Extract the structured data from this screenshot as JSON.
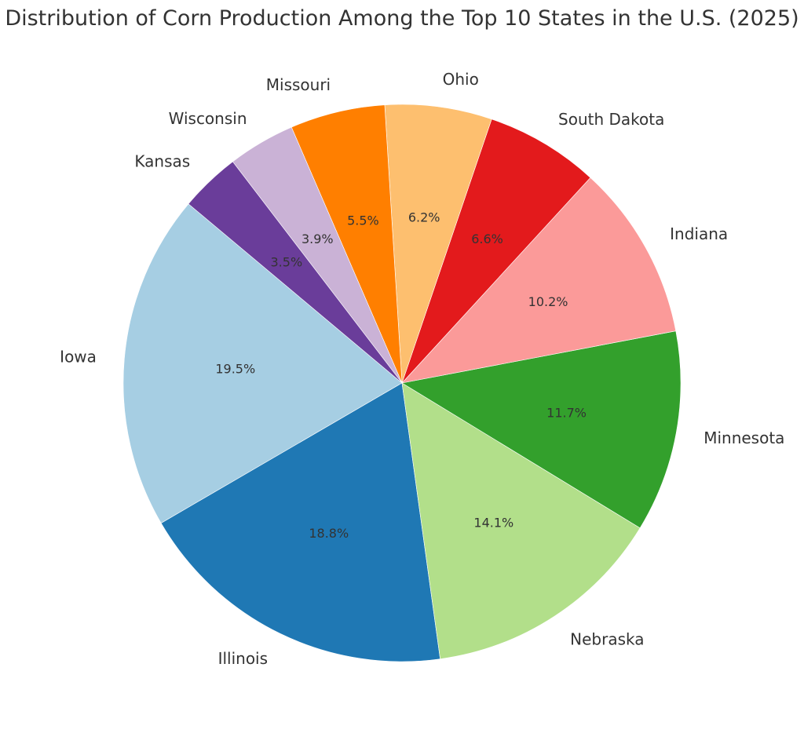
{
  "chart_data": {
    "type": "pie",
    "title": "Distribution of Corn Production Among the Top 10 States in the U.S. (2025)",
    "categories": [
      "Iowa",
      "Illinois",
      "Nebraska",
      "Minnesota",
      "Indiana",
      "South Dakota",
      "Ohio",
      "Missouri",
      "Wisconsin",
      "Kansas"
    ],
    "values": [
      19.5,
      18.8,
      14.1,
      11.7,
      10.2,
      6.6,
      6.2,
      5.5,
      3.9,
      3.5
    ],
    "value_labels": [
      "19.5%",
      "18.8%",
      "14.1%",
      "11.7%",
      "10.2%",
      "6.6%",
      "6.2%",
      "5.5%",
      "3.9%",
      "3.5%"
    ],
    "colors": [
      "#a6cee3",
      "#1f78b4",
      "#b2df8a",
      "#33a02c",
      "#fb9a99",
      "#e31a1c",
      "#fdbf6f",
      "#ff7f00",
      "#cab2d6",
      "#6a3d9a"
    ],
    "start_angle_deg": 140,
    "direction": "counterclockwise",
    "legend": "none"
  }
}
